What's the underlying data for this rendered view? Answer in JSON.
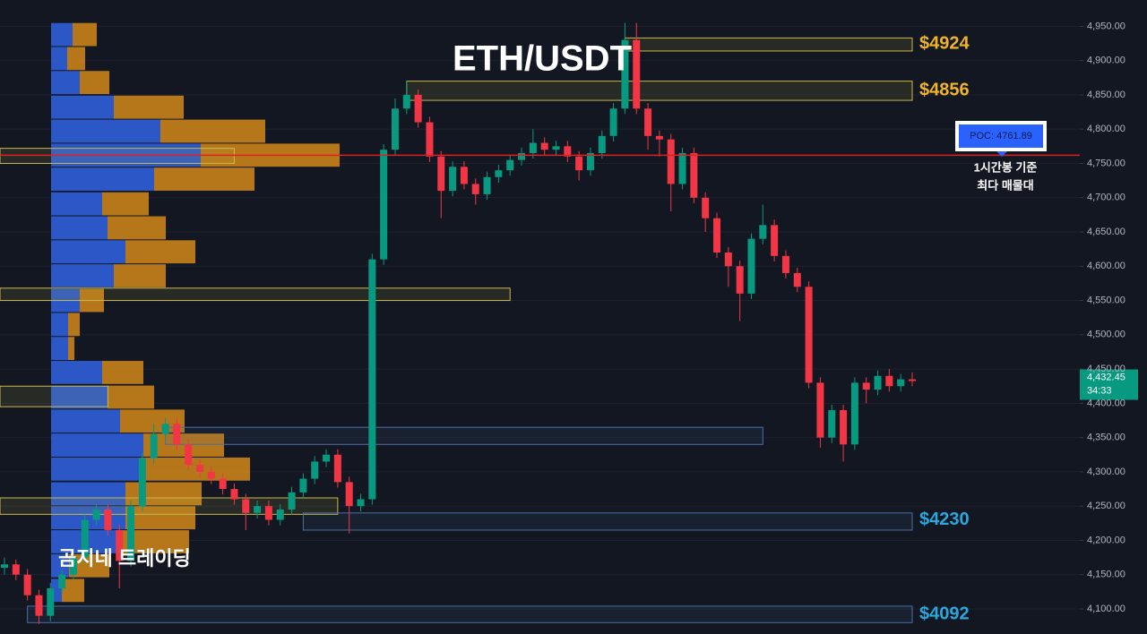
{
  "chart_data": {
    "type": "candlestick",
    "title": "ETH/USDT",
    "watermark": "곰지네 트레이딩",
    "ylim": [
      4063.4,
      4988.4
    ],
    "yticks": [
      {
        "value": 4100,
        "label": "4,100.00"
      },
      {
        "value": 4150,
        "label": "4,150.00"
      },
      {
        "value": 4200,
        "label": "4,200.00"
      },
      {
        "value": 4250,
        "label": "4,250.00"
      },
      {
        "value": 4300,
        "label": "4,300.00"
      },
      {
        "value": 4350,
        "label": "4,350.00"
      },
      {
        "value": 4400,
        "label": "4,400.00"
      },
      {
        "value": 4450,
        "label": "4,450.00"
      },
      {
        "value": 4500,
        "label": "4,500.00"
      },
      {
        "value": 4550,
        "label": "4,550.00"
      },
      {
        "value": 4600,
        "label": "4,600.00"
      },
      {
        "value": 4650,
        "label": "4,650.00"
      },
      {
        "value": 4700,
        "label": "4,700.00"
      },
      {
        "value": 4750,
        "label": "4,750.00"
      },
      {
        "value": 4800,
        "label": "4,800.00"
      },
      {
        "value": 4850,
        "label": "4,850.00"
      },
      {
        "value": 4900,
        "label": "4,900.00"
      },
      {
        "value": 4950,
        "label": "4,950.00"
      }
    ],
    "grid": true,
    "up_color": "#089981",
    "down_color": "#f23645",
    "open": [
      4160,
      4165,
      4150,
      4120,
      4090,
      4130,
      4150,
      4175,
      4230,
      4245,
      4215,
      4170,
      4250,
      4320,
      4355,
      4370,
      4340,
      4310,
      4300,
      4290,
      4275,
      4260,
      4240,
      4250,
      4230,
      4245,
      4270,
      4290,
      4315,
      4325,
      4285,
      4250,
      4260,
      4610,
      4770,
      4830,
      4850,
      4810,
      4760,
      4710,
      4745,
      4720,
      4705,
      4730,
      4740,
      4755,
      4765,
      4780,
      4770,
      4775,
      4760,
      4740,
      4765,
      4790,
      4830,
      4930,
      4830,
      4790,
      4785,
      4720,
      4765,
      4700,
      4670,
      4620,
      4600,
      4560,
      4640,
      4660,
      4615,
      4590,
      4570,
      4430,
      4350,
      4390,
      4340,
      4430,
      4420,
      4440,
      4425,
      4435
    ],
    "high": [
      4175,
      4172,
      4158,
      4128,
      4138,
      4158,
      4183,
      4238,
      4253,
      4253,
      4223,
      4258,
      4328,
      4370,
      4378,
      4378,
      4348,
      4318,
      4308,
      4298,
      4283,
      4268,
      4258,
      4258,
      4253,
      4278,
      4298,
      4323,
      4333,
      4333,
      4293,
      4268,
      4618,
      4778,
      4845,
      4870,
      4858,
      4818,
      4768,
      4753,
      4753,
      4728,
      4738,
      4748,
      4763,
      4773,
      4800,
      4788,
      4783,
      4783,
      4768,
      4773,
      4798,
      4838,
      4955,
      4955,
      4838,
      4798,
      4793,
      4773,
      4773,
      4708,
      4678,
      4628,
      4608,
      4648,
      4690,
      4668,
      4623,
      4598,
      4578,
      4438,
      4398,
      4398,
      4438,
      4438,
      4448,
      4450,
      4443,
      4445
    ],
    "low": [
      4150,
      4142,
      4112,
      4078,
      4082,
      4122,
      4142,
      4167,
      4222,
      4207,
      4130,
      4162,
      4242,
      4312,
      4347,
      4332,
      4302,
      4292,
      4282,
      4267,
      4252,
      4215,
      4232,
      4222,
      4222,
      4237,
      4262,
      4282,
      4307,
      4277,
      4210,
      4242,
      4252,
      4602,
      4762,
      4822,
      4802,
      4752,
      4670,
      4702,
      4712,
      4690,
      4697,
      4722,
      4732,
      4747,
      4757,
      4762,
      4762,
      4752,
      4725,
      4732,
      4757,
      4782,
      4822,
      4822,
      4770,
      4760,
      4680,
      4712,
      4692,
      4650,
      4612,
      4570,
      4520,
      4552,
      4632,
      4607,
      4582,
      4562,
      4422,
      4335,
      4342,
      4315,
      4332,
      4400,
      4412,
      4417,
      4417,
      4425
    ],
    "close": [
      4165,
      4150,
      4120,
      4090,
      4130,
      4150,
      4175,
      4230,
      4245,
      4215,
      4170,
      4250,
      4320,
      4355,
      4370,
      4340,
      4310,
      4300,
      4290,
      4275,
      4260,
      4240,
      4250,
      4230,
      4245,
      4270,
      4290,
      4315,
      4325,
      4285,
      4250,
      4260,
      4610,
      4770,
      4830,
      4850,
      4810,
      4760,
      4710,
      4745,
      4720,
      4705,
      4730,
      4740,
      4755,
      4765,
      4780,
      4770,
      4775,
      4760,
      4740,
      4765,
      4790,
      4830,
      4930,
      4830,
      4790,
      4785,
      4720,
      4765,
      4700,
      4670,
      4620,
      4600,
      4560,
      4640,
      4660,
      4615,
      4590,
      4570,
      4430,
      4350,
      4390,
      4340,
      4430,
      4420,
      4440,
      4425,
      4435,
      4432.45
    ],
    "zones": [
      {
        "low": 4914,
        "high": 4933,
        "from": 54,
        "to": 79,
        "color": "#c9b84a"
      },
      {
        "low": 4842,
        "high": 4870,
        "from": 35,
        "to": 79,
        "color": "#c9b84a"
      },
      {
        "low": 4750,
        "high": 4772,
        "from": 0,
        "to": 20,
        "color": "#c9b84a"
      },
      {
        "low": 4550,
        "high": 4568,
        "from": 0,
        "to": 44,
        "color": "#c9b84a"
      },
      {
        "low": 4395,
        "high": 4425,
        "from": 0,
        "to": 9,
        "color": "#c9b84a"
      },
      {
        "low": 4340,
        "high": 4365,
        "from": 14,
        "to": 66,
        "color": "#4a6fa5"
      },
      {
        "low": 4238,
        "high": 4262,
        "from": 0,
        "to": 29,
        "color": "#c9b84a"
      },
      {
        "low": 4215,
        "high": 4240,
        "from": 26,
        "to": 79,
        "color": "#4a6fa5"
      },
      {
        "low": 4080,
        "high": 4104,
        "from": 2,
        "to": 79,
        "color": "#4a6fa5"
      }
    ],
    "price_labels": [
      {
        "value": 4924,
        "label": "$4924",
        "color": "#f0b429"
      },
      {
        "value": 4856,
        "label": "$4856",
        "color": "#f0b429"
      },
      {
        "value": 4230,
        "label": "$4230",
        "color": "#29a8e0"
      },
      {
        "value": 4092,
        "label": "$4092",
        "color": "#29a8e0"
      }
    ],
    "poc": {
      "value": 4761.89,
      "label": "POC: 4761.89",
      "color": "#e02020",
      "note": [
        "1시간봉 기준",
        "최다 매물대"
      ]
    },
    "current_price": {
      "value": 4432.45,
      "label": "4,432.45",
      "countdown": "34:33"
    },
    "volume_profile": {
      "prices": [
        4938,
        4903,
        4868,
        4832,
        4797,
        4762,
        4727,
        4691,
        4656,
        4621,
        4586,
        4550,
        4515,
        4480,
        4445,
        4409,
        4374,
        4339,
        4304,
        4268,
        4233,
        4198,
        4163,
        4127
      ],
      "buy": [
        24,
        18,
        32,
        70,
        122,
        167,
        115,
        57,
        63,
        83,
        70,
        32,
        19,
        19,
        57,
        63,
        77,
        103,
        100,
        83,
        83,
        77,
        20,
        12
      ],
      "sell": [
        27,
        20,
        33,
        78,
        117,
        155,
        112,
        52,
        65,
        78,
        58,
        27,
        13,
        7,
        46,
        52,
        72,
        90,
        122,
        85,
        78,
        77,
        45,
        25
      ],
      "xlim": [
        0,
        400
      ],
      "buy_color": "#2f5fd8",
      "sell_color": "#c8821a"
    }
  }
}
